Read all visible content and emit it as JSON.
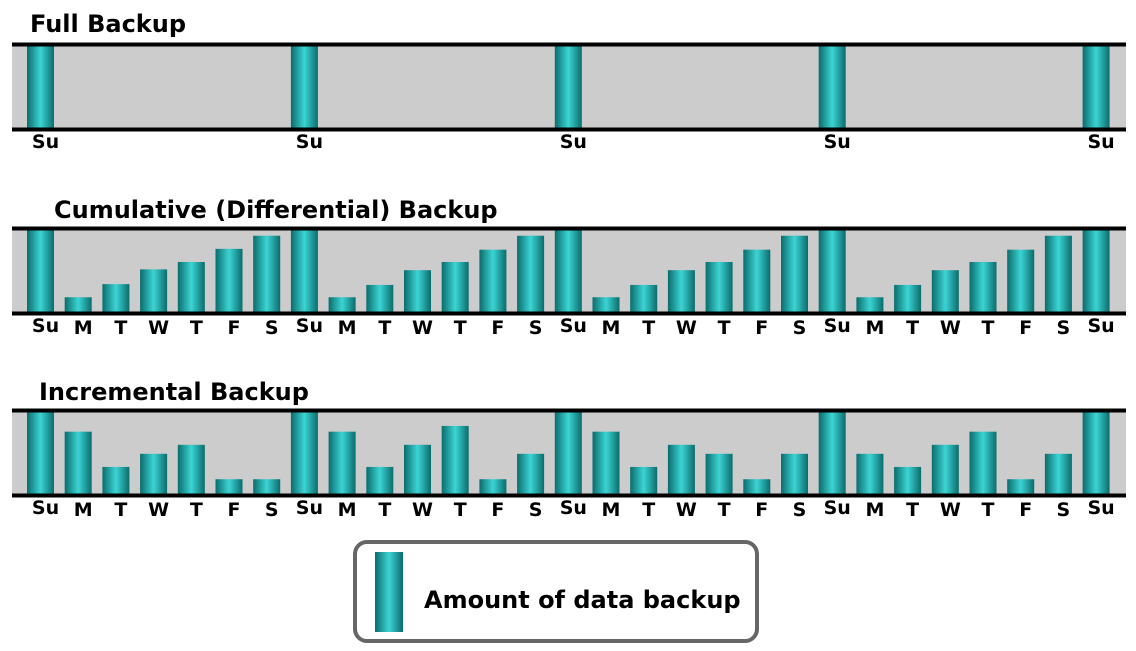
{
  "chart_data": [
    {
      "type": "bar",
      "title": "Full Backup",
      "categories": [
        "Su",
        "",
        "",
        "",
        "",
        "",
        "",
        "Su",
        "",
        "",
        "",
        "",
        "",
        "",
        "Su",
        "",
        "",
        "",
        "",
        "",
        "",
        "Su",
        "",
        "",
        "",
        "",
        "",
        "",
        "Su"
      ],
      "values": [
        1,
        0,
        0,
        0,
        0,
        0,
        0,
        1,
        0,
        0,
        0,
        0,
        0,
        0,
        1,
        0,
        0,
        0,
        0,
        0,
        0,
        1,
        0,
        0,
        0,
        0,
        0,
        0,
        1
      ],
      "ylim": [
        0,
        1
      ],
      "grid": false
    },
    {
      "type": "bar",
      "title": "Cumulative (Differential) Backup",
      "categories": [
        "Su",
        "M",
        "T",
        "W",
        "T",
        "F",
        "S",
        "Su",
        "M",
        "T",
        "W",
        "T",
        "F",
        "S",
        "Su",
        "M",
        "T",
        "W",
        "T",
        "F",
        "S",
        "Su",
        "M",
        "T",
        "W",
        "T",
        "F",
        "S",
        "Su"
      ],
      "values": [
        1,
        0.18,
        0.34,
        0.52,
        0.61,
        0.77,
        0.93,
        1,
        0.18,
        0.33,
        0.51,
        0.61,
        0.76,
        0.93,
        1,
        0.18,
        0.33,
        0.51,
        0.61,
        0.76,
        0.93,
        1,
        0.18,
        0.33,
        0.51,
        0.61,
        0.76,
        0.93,
        1
      ],
      "ylim": [
        0,
        1
      ],
      "grid": false
    },
    {
      "type": "bar",
      "title": "Incremental Backup",
      "categories": [
        "Su",
        "M",
        "T",
        "W",
        "T",
        "F",
        "S",
        "Su",
        "M",
        "T",
        "W",
        "T",
        "F",
        "S",
        "Su",
        "M",
        "T",
        "W",
        "T",
        "F",
        "S",
        "Su",
        "M",
        "T",
        "W",
        "T",
        "F",
        "S",
        "Su"
      ],
      "values": [
        1,
        0.76,
        0.33,
        0.49,
        0.6,
        0.18,
        0.18,
        1,
        0.76,
        0.33,
        0.6,
        0.83,
        0.18,
        0.49,
        1,
        0.76,
        0.33,
        0.6,
        0.49,
        0.18,
        0.49,
        1,
        0.49,
        0.33,
        0.6,
        0.76,
        0.18,
        0.49,
        1
      ],
      "ylim": [
        0,
        1
      ],
      "grid": false
    }
  ],
  "legend": {
    "label": "Amount of data backup",
    "placement": "bottom-center"
  },
  "colors": {
    "bar_dark": "#0b6c6c",
    "bar_light": "#3cd4d4",
    "panel_bg": "#cccccc",
    "axis_line": "#000000",
    "legend_border": "#666666"
  }
}
